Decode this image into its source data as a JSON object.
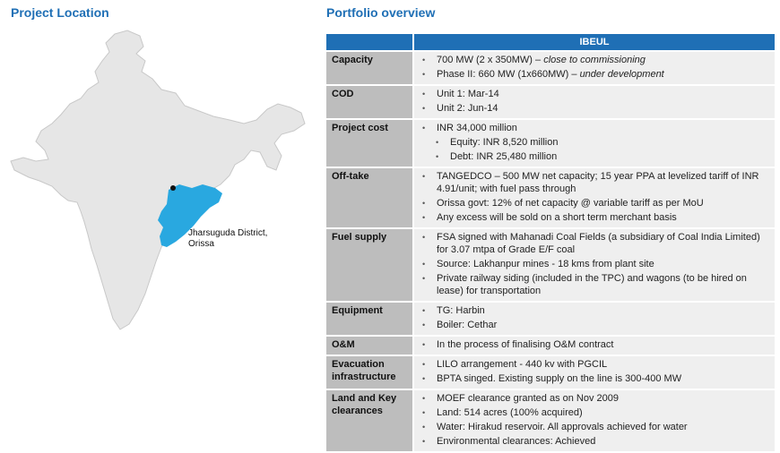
{
  "left_heading": "Project Location",
  "right_heading": "Portfolio overview",
  "map": {
    "marker_label_line1": "Jharsuguda District,",
    "marker_label_line2": "Orissa",
    "highlight_color": "#29a8e0",
    "land_color": "#e6e6e6",
    "border_color": "#c8c8c8"
  },
  "table": {
    "header": "IBEUL",
    "header_color": "#1f6fb5",
    "rows": [
      {
        "label": "Capacity",
        "items": [
          {
            "text": "700 MW (2 x 350MW) – ",
            "em": "close to commissioning"
          },
          {
            "text": "Phase II: 660 MW (1x660MW) – ",
            "em": "under development"
          }
        ]
      },
      {
        "label": "COD",
        "items": [
          {
            "text": "Unit 1: Mar-14"
          },
          {
            "text": "Unit 2: Jun-14"
          }
        ]
      },
      {
        "label": "Project cost",
        "items": [
          {
            "text": "INR 34,000 million"
          },
          {
            "text": "Equity: INR 8,520 million",
            "sub": true
          },
          {
            "text": "Debt: INR 25,480 million",
            "sub": true
          }
        ]
      },
      {
        "label": "Off-take",
        "items": [
          {
            "text": "TANGEDCO – 500 MW net capacity; 15 year PPA at levelized tariff of INR 4.91/unit; with fuel pass through"
          },
          {
            "text": "Orissa govt: 12% of net capacity @ variable tariff as per MoU"
          },
          {
            "text": "Any excess will be sold on a short term merchant basis"
          }
        ]
      },
      {
        "label": "Fuel supply",
        "items": [
          {
            "text": "FSA signed with Mahanadi Coal Fields (a subsidiary of Coal India Limited)  for 3.07 mtpa of Grade E/F coal"
          },
          {
            "text": "Source:  Lakhanpur mines - 18 kms from plant site"
          },
          {
            "text": "Private railway siding (included in the TPC) and wagons (to be hired on lease) for transportation"
          }
        ]
      },
      {
        "label": "Equipment",
        "items": [
          {
            "text": "TG: Harbin"
          },
          {
            "text": "Boiler: Cethar"
          }
        ]
      },
      {
        "label": "O&M",
        "items": [
          {
            "text": "In the process of finalising O&M contract"
          }
        ]
      },
      {
        "label": "Evacuation infrastructure",
        "items": [
          {
            "text": "LILO arrangement - 440 kv with PGCIL"
          },
          {
            "text": "BPTA singed. Existing supply on the line is 300-400 MW"
          }
        ]
      },
      {
        "label": "Land and Key clearances",
        "items": [
          {
            "text": "MOEF clearance granted as on Nov 2009"
          },
          {
            "text": "Land: 514 acres (100% acquired)"
          },
          {
            "text": "Water: Hirakud reservoir. All approvals achieved for water"
          },
          {
            "text": "Environmental clearances: Achieved"
          }
        ]
      }
    ]
  }
}
